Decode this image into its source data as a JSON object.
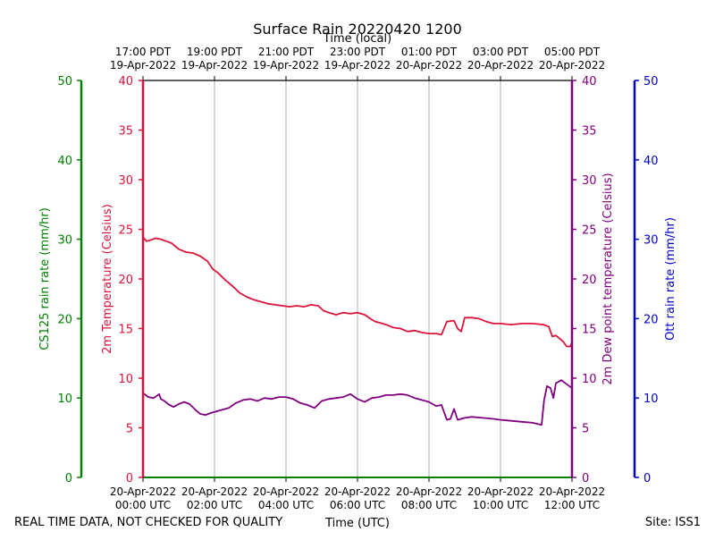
{
  "chart_data": {
    "type": "line",
    "title": "Surface Rain 20220420 1200",
    "top_axis_label": "Time (local)",
    "bottom_axis_label": "Time (UTC)",
    "footer_left": "REAL TIME DATA, NOT CHECKED FOR QUALITY",
    "footer_right": "Site: ISS1",
    "x_range_hours": [
      0,
      12
    ],
    "x_ticks_utc": [
      {
        "h": 0,
        "line1": "20-Apr-2022",
        "line2": "00:00 UTC"
      },
      {
        "h": 2,
        "line1": "20-Apr-2022",
        "line2": "02:00 UTC"
      },
      {
        "h": 4,
        "line1": "20-Apr-2022",
        "line2": "04:00 UTC"
      },
      {
        "h": 6,
        "line1": "20-Apr-2022",
        "line2": "06:00 UTC"
      },
      {
        "h": 8,
        "line1": "20-Apr-2022",
        "line2": "08:00 UTC"
      },
      {
        "h": 10,
        "line1": "20-Apr-2022",
        "line2": "10:00 UTC"
      },
      {
        "h": 12,
        "line1": "20-Apr-2022",
        "line2": "12:00 UTC"
      }
    ],
    "x_ticks_local": [
      {
        "h": 0,
        "line1": "17:00 PDT",
        "line2": "19-Apr-2022"
      },
      {
        "h": 2,
        "line1": "19:00 PDT",
        "line2": "19-Apr-2022"
      },
      {
        "h": 4,
        "line1": "21:00 PDT",
        "line2": "19-Apr-2022"
      },
      {
        "h": 6,
        "line1": "23:00 PDT",
        "line2": "19-Apr-2022"
      },
      {
        "h": 8,
        "line1": "01:00 PDT",
        "line2": "20-Apr-2022"
      },
      {
        "h": 10,
        "line1": "03:00 PDT",
        "line2": "20-Apr-2022"
      },
      {
        "h": 12,
        "line1": "05:00 PDT",
        "line2": "20-Apr-2022"
      }
    ],
    "axes": {
      "cs125": {
        "label": "CS125 rain rate (mm/hr)",
        "range": [
          0,
          50
        ],
        "ticks": [
          0,
          10,
          20,
          30,
          40,
          50
        ],
        "color": "#008000"
      },
      "temp": {
        "label": "2m Temperature (Celsius)",
        "range": [
          0,
          40
        ],
        "ticks": [
          0,
          5,
          10,
          15,
          20,
          25,
          30,
          35,
          40
        ],
        "color": "#dc143c"
      },
      "dew": {
        "label": "2m Dew point temperature (Celsius)",
        "range": [
          0,
          40
        ],
        "ticks": [
          0,
          5,
          10,
          15,
          20,
          25,
          30,
          35,
          40
        ],
        "color": "#800080"
      },
      "ott": {
        "label": "Ott rain rate (mm/hr)",
        "range": [
          0,
          50
        ],
        "ticks": [
          0,
          10,
          20,
          30,
          40,
          50
        ],
        "color": "#0000cd"
      }
    },
    "series": [
      {
        "name": "2m Temperature",
        "axis": "temp",
        "color": "#dc143c",
        "x": [
          0,
          0.1,
          0.2,
          0.35,
          0.5,
          0.65,
          0.8,
          1.0,
          1.2,
          1.4,
          1.6,
          1.8,
          1.95,
          2.1,
          2.3,
          2.5,
          2.7,
          2.9,
          3.1,
          3.3,
          3.5,
          3.7,
          3.9,
          4.1,
          4.3,
          4.5,
          4.7,
          4.9,
          5.05,
          5.2,
          5.4,
          5.6,
          5.8,
          6.0,
          6.2,
          6.4,
          6.5,
          6.6,
          6.8,
          7.0,
          7.2,
          7.4,
          7.6,
          7.8,
          8.0,
          8.2,
          8.35,
          8.5,
          8.7,
          8.8,
          8.9,
          9.0,
          9.2,
          9.4,
          9.6,
          9.8,
          10.0,
          10.3,
          10.6,
          10.9,
          11.2,
          11.35,
          11.45,
          11.55,
          11.65,
          11.75,
          11.85,
          11.95,
          12.0
        ],
        "y": [
          24.2,
          23.8,
          23.9,
          24.1,
          24.0,
          23.8,
          23.6,
          23.0,
          22.7,
          22.6,
          22.3,
          21.8,
          21.0,
          20.6,
          19.9,
          19.3,
          18.6,
          18.2,
          17.9,
          17.7,
          17.5,
          17.4,
          17.3,
          17.2,
          17.3,
          17.2,
          17.4,
          17.3,
          16.8,
          16.6,
          16.4,
          16.6,
          16.5,
          16.6,
          16.4,
          15.9,
          15.7,
          15.6,
          15.4,
          15.1,
          15.0,
          14.7,
          14.8,
          14.6,
          14.5,
          14.5,
          14.4,
          15.7,
          15.8,
          15.0,
          14.7,
          16.1,
          16.1,
          16.0,
          15.7,
          15.5,
          15.5,
          15.4,
          15.5,
          15.5,
          15.4,
          15.2,
          14.2,
          14.3,
          14.0,
          13.7,
          13.2,
          13.2,
          13.6
        ]
      },
      {
        "name": "2m Dew point temperature",
        "axis": "dew",
        "color": "#800080",
        "x": [
          0,
          0.15,
          0.3,
          0.45,
          0.5,
          0.6,
          0.7,
          0.85,
          1.0,
          1.15,
          1.3,
          1.5,
          1.6,
          1.75,
          1.9,
          2.0,
          2.2,
          2.4,
          2.6,
          2.8,
          3.0,
          3.2,
          3.4,
          3.6,
          3.8,
          4.0,
          4.2,
          4.4,
          4.6,
          4.8,
          5.0,
          5.2,
          5.4,
          5.6,
          5.8,
          6.0,
          6.2,
          6.4,
          6.6,
          6.8,
          7.0,
          7.2,
          7.4,
          7.6,
          7.8,
          8.0,
          8.2,
          8.35,
          8.5,
          8.6,
          8.7,
          8.8,
          8.9,
          9.0,
          9.2,
          9.5,
          9.8,
          10.0,
          10.3,
          10.6,
          10.9,
          11.15,
          11.22,
          11.3,
          11.4,
          11.48,
          11.55,
          11.7,
          11.85,
          12.0
        ],
        "y": [
          8.5,
          8.1,
          8.0,
          8.4,
          7.9,
          7.7,
          7.4,
          7.1,
          7.4,
          7.6,
          7.4,
          6.7,
          6.4,
          6.3,
          6.5,
          6.6,
          6.8,
          7.0,
          7.5,
          7.8,
          7.9,
          7.7,
          8.0,
          7.9,
          8.1,
          8.1,
          7.9,
          7.5,
          7.3,
          7.0,
          7.7,
          7.9,
          8.0,
          8.1,
          8.4,
          7.9,
          7.6,
          8.0,
          8.1,
          8.3,
          8.3,
          8.4,
          8.3,
          8.0,
          7.8,
          7.6,
          7.2,
          7.3,
          5.8,
          5.9,
          6.9,
          5.8,
          5.9,
          6.0,
          6.1,
          6.0,
          5.9,
          5.8,
          5.7,
          5.6,
          5.5,
          5.3,
          7.8,
          9.2,
          9.0,
          8.0,
          9.5,
          9.8,
          9.4,
          9.0
        ]
      }
    ]
  }
}
